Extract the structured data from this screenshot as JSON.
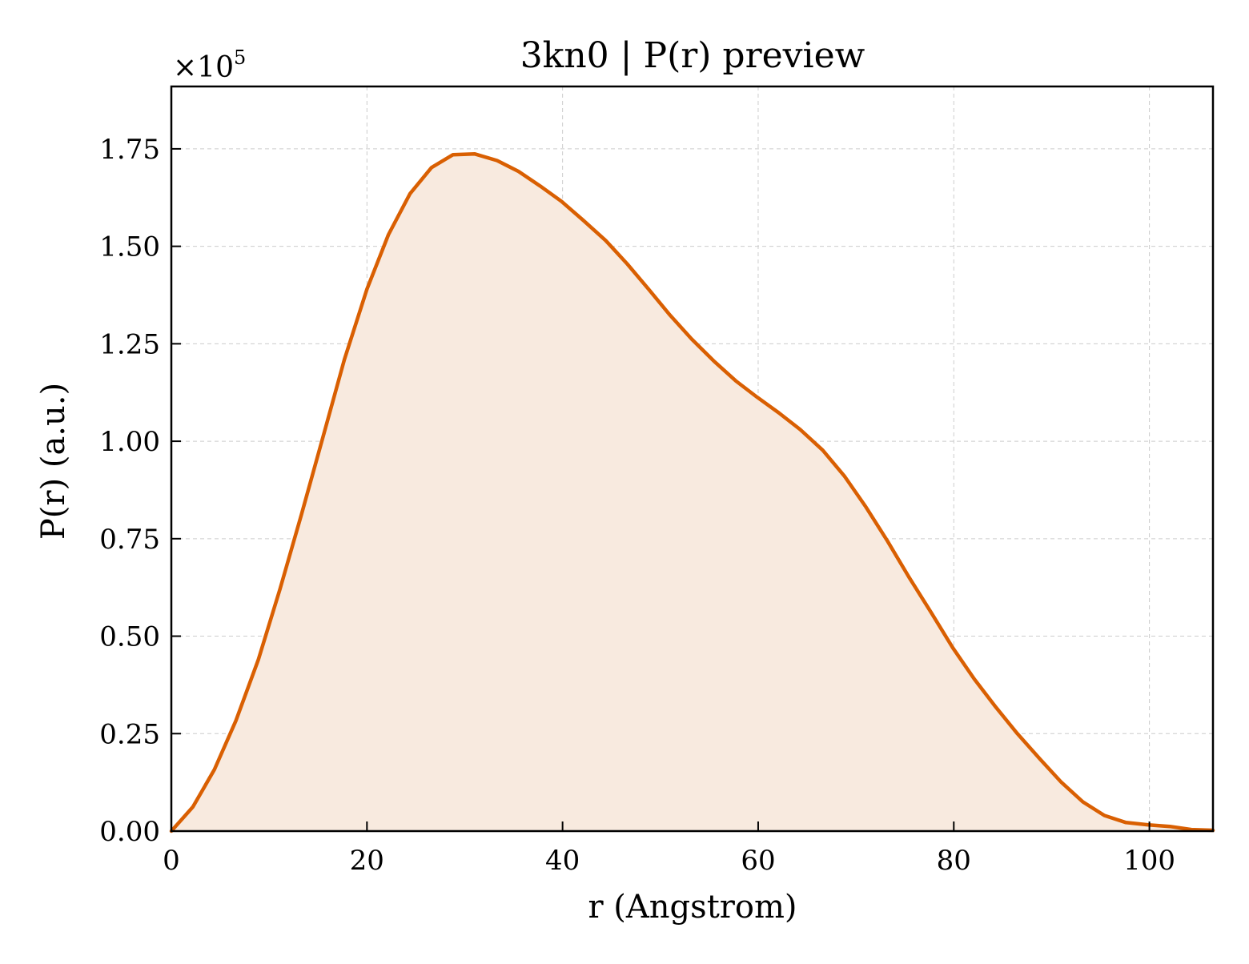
{
  "chart_data": {
    "type": "area",
    "title": "3kn0 | P(r) preview",
    "xlabel": "r (Angstrom)",
    "ylabel": "P(r) (a.u.)",
    "y_multiplier_label": "×10",
    "y_multiplier_exponent": "5",
    "xlim": [
      0,
      106.5
    ],
    "ylim": [
      0,
      1.91
    ],
    "x_ticks": [
      0,
      20,
      40,
      60,
      80,
      100
    ],
    "x_tick_labels": [
      "0",
      "20",
      "40",
      "60",
      "80",
      "100"
    ],
    "y_ticks": [
      0,
      0.25,
      0.5,
      0.75,
      1.0,
      1.25,
      1.5,
      1.75
    ],
    "y_tick_labels": [
      "0.00",
      "0.25",
      "0.50",
      "0.75",
      "1.00",
      "1.25",
      "1.50",
      "1.75"
    ],
    "grid": true,
    "series": [
      {
        "color": "#d95f02",
        "fill_color": "#f8eadf",
        "x": [
          0,
          2.2,
          4.4,
          6.6,
          8.9,
          11.1,
          13.3,
          15.5,
          17.7,
          20.0,
          22.2,
          24.4,
          26.6,
          28.8,
          31.0,
          33.3,
          35.5,
          37.7,
          39.9,
          42.1,
          44.4,
          46.6,
          48.8,
          51.0,
          53.2,
          55.5,
          57.7,
          59.9,
          62.1,
          64.3,
          66.6,
          68.8,
          71.0,
          73.2,
          75.4,
          77.7,
          79.9,
          82.1,
          84.3,
          86.5,
          88.8,
          91.0,
          93.2,
          95.4,
          97.6,
          99.9,
          102.1,
          104.3,
          106.5
        ],
        "y": [
          0.0,
          0.062,
          0.158,
          0.283,
          0.44,
          0.62,
          0.812,
          1.01,
          1.21,
          1.39,
          1.53,
          1.635,
          1.702,
          1.735,
          1.737,
          1.72,
          1.692,
          1.655,
          1.615,
          1.567,
          1.515,
          1.455,
          1.39,
          1.323,
          1.262,
          1.205,
          1.155,
          1.113,
          1.073,
          1.03,
          0.977,
          0.911,
          0.832,
          0.745,
          0.652,
          0.56,
          0.47,
          0.39,
          0.318,
          0.25,
          0.185,
          0.125,
          0.075,
          0.04,
          0.022,
          0.016,
          0.012,
          0.004,
          0.002
        ]
      }
    ]
  }
}
